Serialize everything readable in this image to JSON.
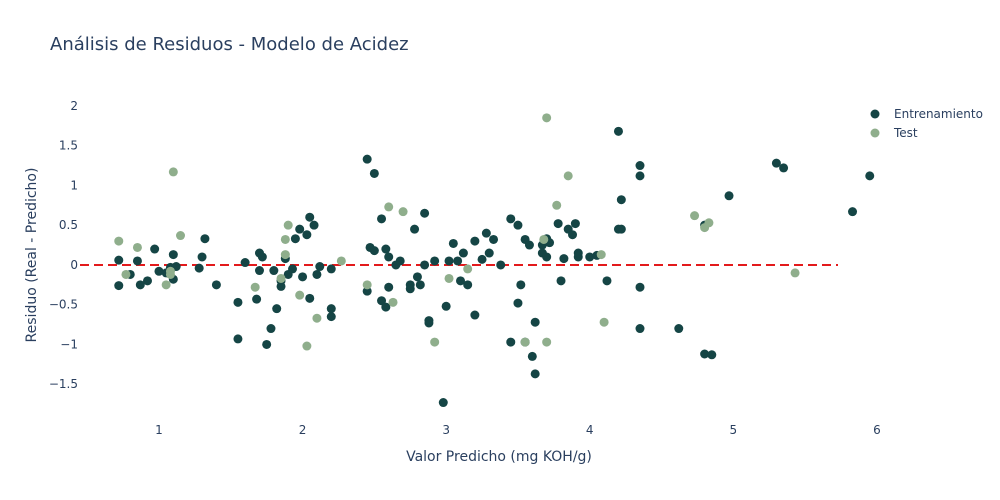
{
  "chart_data": {
    "type": "scatter",
    "title": "Análisis de Residuos - Modelo de Acidez",
    "xlabel": "Valor Predicho (mg KOH/g)",
    "ylabel": "Residuo (Real - Predicho)",
    "xlim": [
      0.45,
      6.3
    ],
    "ylim": [
      -1.95,
      2.2
    ],
    "x_ticks": [
      1,
      2,
      3,
      4,
      5,
      6
    ],
    "y_ticks": [
      -1.5,
      -1,
      -0.5,
      0,
      0.5,
      1,
      1.5,
      2
    ],
    "y_tick_labels": [
      "−1.5",
      "−1",
      "−0.5",
      "0",
      "0.5",
      "1",
      "1.5",
      "2"
    ],
    "grid": false,
    "legend_position": "top-right",
    "reference_line": {
      "y": 0,
      "color": "#e31a1c",
      "style": "dashed"
    },
    "series": [
      {
        "name": "Entrenamiento",
        "color": "#154545",
        "points": [
          [
            0.72,
            0.06
          ],
          [
            0.72,
            -0.26
          ],
          [
            0.8,
            -0.12
          ],
          [
            0.85,
            0.05
          ],
          [
            0.87,
            -0.25
          ],
          [
            0.92,
            -0.2
          ],
          [
            0.97,
            0.2
          ],
          [
            1.0,
            -0.08
          ],
          [
            1.05,
            -0.1
          ],
          [
            1.08,
            -0.03
          ],
          [
            1.1,
            0.13
          ],
          [
            1.12,
            -0.02
          ],
          [
            1.1,
            -0.18
          ],
          [
            1.28,
            -0.04
          ],
          [
            1.3,
            0.1
          ],
          [
            1.32,
            0.33
          ],
          [
            1.4,
            -0.25
          ],
          [
            1.55,
            -0.47
          ],
          [
            1.55,
            -0.93
          ],
          [
            1.6,
            0.03
          ],
          [
            1.68,
            -0.43
          ],
          [
            1.7,
            -0.07
          ],
          [
            1.7,
            0.15
          ],
          [
            1.72,
            0.1
          ],
          [
            1.78,
            -0.8
          ],
          [
            1.75,
            -1.0
          ],
          [
            1.8,
            -0.07
          ],
          [
            1.82,
            -0.55
          ],
          [
            1.85,
            -0.2
          ],
          [
            1.85,
            -0.27
          ],
          [
            1.88,
            0.08
          ],
          [
            1.9,
            -0.12
          ],
          [
            1.93,
            -0.05
          ],
          [
            1.95,
            0.33
          ],
          [
            1.98,
            0.45
          ],
          [
            2.0,
            -0.15
          ],
          [
            2.03,
            0.38
          ],
          [
            2.05,
            0.6
          ],
          [
            2.05,
            -0.42
          ],
          [
            2.08,
            0.5
          ],
          [
            2.1,
            -0.12
          ],
          [
            2.12,
            -0.02
          ],
          [
            2.2,
            -0.05
          ],
          [
            2.2,
            -0.55
          ],
          [
            2.2,
            -0.65
          ],
          [
            2.45,
            1.33
          ],
          [
            2.45,
            -0.33
          ],
          [
            2.47,
            0.22
          ],
          [
            2.5,
            0.18
          ],
          [
            2.5,
            1.15
          ],
          [
            2.55,
            0.58
          ],
          [
            2.55,
            -0.45
          ],
          [
            2.58,
            -0.53
          ],
          [
            2.58,
            0.2
          ],
          [
            2.6,
            -0.28
          ],
          [
            2.6,
            0.1
          ],
          [
            2.65,
            0.0
          ],
          [
            2.68,
            0.05
          ],
          [
            2.75,
            -0.25
          ],
          [
            2.75,
            -0.3
          ],
          [
            2.78,
            0.45
          ],
          [
            2.8,
            -0.15
          ],
          [
            2.82,
            -0.25
          ],
          [
            2.85,
            0.0
          ],
          [
            2.85,
            0.65
          ],
          [
            2.88,
            -0.73
          ],
          [
            2.88,
            -0.7
          ],
          [
            2.92,
            0.05
          ],
          [
            2.98,
            -1.73
          ],
          [
            3.0,
            -0.52
          ],
          [
            3.02,
            0.05
          ],
          [
            3.05,
            0.27
          ],
          [
            3.08,
            0.05
          ],
          [
            3.1,
            -0.2
          ],
          [
            3.12,
            0.15
          ],
          [
            3.15,
            -0.25
          ],
          [
            3.2,
            -0.63
          ],
          [
            3.2,
            0.3
          ],
          [
            3.25,
            0.07
          ],
          [
            3.28,
            0.4
          ],
          [
            3.3,
            0.15
          ],
          [
            3.33,
            0.32
          ],
          [
            3.38,
            0.0
          ],
          [
            3.45,
            0.58
          ],
          [
            3.5,
            0.5
          ],
          [
            3.52,
            -0.25
          ],
          [
            3.5,
            -0.48
          ],
          [
            3.55,
            0.32
          ],
          [
            3.58,
            0.25
          ],
          [
            3.6,
            -1.15
          ],
          [
            3.62,
            -1.37
          ],
          [
            3.62,
            -0.72
          ],
          [
            3.67,
            0.25
          ],
          [
            3.67,
            0.15
          ],
          [
            3.7,
            0.33
          ],
          [
            3.7,
            0.1
          ],
          [
            3.72,
            0.28
          ],
          [
            3.78,
            0.52
          ],
          [
            3.8,
            -0.2
          ],
          [
            3.82,
            0.08
          ],
          [
            3.85,
            0.45
          ],
          [
            3.88,
            0.38
          ],
          [
            3.9,
            0.52
          ],
          [
            3.92,
            0.1
          ],
          [
            3.92,
            0.15
          ],
          [
            4.0,
            0.1
          ],
          [
            4.05,
            0.12
          ],
          [
            4.12,
            -0.2
          ],
          [
            4.2,
            0.45
          ],
          [
            4.22,
            0.45
          ],
          [
            4.22,
            0.82
          ],
          [
            4.2,
            1.68
          ],
          [
            4.35,
            1.12
          ],
          [
            4.35,
            1.25
          ],
          [
            4.35,
            -0.28
          ],
          [
            4.35,
            -0.8
          ],
          [
            4.62,
            -0.8
          ],
          [
            4.8,
            -1.12
          ],
          [
            4.85,
            -1.13
          ],
          [
            4.8,
            0.5
          ],
          [
            4.97,
            0.87
          ],
          [
            5.3,
            1.28
          ],
          [
            5.35,
            1.22
          ],
          [
            5.83,
            0.67
          ],
          [
            5.95,
            1.12
          ],
          [
            3.45,
            -0.97
          ],
          [
            3.55,
            -0.97
          ]
        ]
      },
      {
        "name": "Test",
        "color": "#8fae8c",
        "points": [
          [
            0.72,
            0.3
          ],
          [
            0.77,
            -0.12
          ],
          [
            0.85,
            0.22
          ],
          [
            1.05,
            -0.25
          ],
          [
            1.08,
            -0.12
          ],
          [
            1.08,
            -0.08
          ],
          [
            1.1,
            1.17
          ],
          [
            1.15,
            0.37
          ],
          [
            1.67,
            -0.28
          ],
          [
            1.85,
            -0.17
          ],
          [
            1.88,
            0.13
          ],
          [
            1.88,
            0.32
          ],
          [
            1.9,
            0.5
          ],
          [
            1.98,
            -0.38
          ],
          [
            2.03,
            -1.02
          ],
          [
            2.1,
            -0.67
          ],
          [
            2.27,
            0.05
          ],
          [
            2.45,
            -0.25
          ],
          [
            2.6,
            0.73
          ],
          [
            2.63,
            -0.47
          ],
          [
            2.7,
            0.67
          ],
          [
            2.92,
            -0.97
          ],
          [
            3.02,
            -0.17
          ],
          [
            3.15,
            -0.05
          ],
          [
            3.55,
            -0.97
          ],
          [
            3.68,
            0.32
          ],
          [
            3.7,
            1.85
          ],
          [
            3.7,
            -0.97
          ],
          [
            3.77,
            0.75
          ],
          [
            3.85,
            1.12
          ],
          [
            4.08,
            0.13
          ],
          [
            4.1,
            -0.72
          ],
          [
            4.73,
            0.62
          ],
          [
            4.8,
            0.47
          ],
          [
            4.83,
            0.53
          ],
          [
            5.43,
            -0.1
          ]
        ]
      }
    ]
  }
}
